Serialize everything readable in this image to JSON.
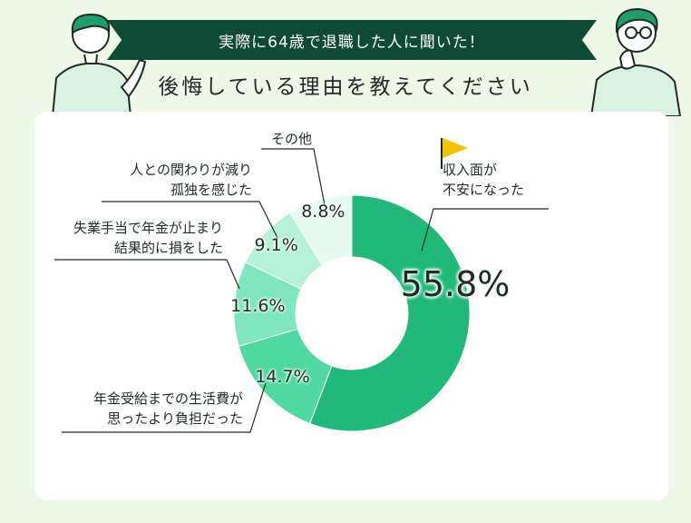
{
  "header": {
    "banner_text": "実際に64歳で退職した人に聞いた！",
    "subtitle": "後悔している理由を教えてください"
  },
  "colors": {
    "background": "#eef8e6",
    "banner": "#0f4a36",
    "accent_flag": "#f5c400"
  },
  "chart_data": {
    "type": "pie",
    "title": "後悔している理由を教えてください",
    "unit": "%",
    "slices": [
      {
        "label": "収入面が不安になった",
        "value": 55.8,
        "value_label": "55.8%",
        "label_lines": [
          "収入面が",
          "不安になった"
        ],
        "color": "#21b97a"
      },
      {
        "label": "年金受給までの生活費が思ったより負担だった",
        "value": 14.7,
        "value_label": "14.7%",
        "label_lines": [
          "年金受給までの生活費が",
          "思ったより負担だった"
        ],
        "color": "#4fd9a1"
      },
      {
        "label": "失業手当で年金が止まり結果的に損をした",
        "value": 11.6,
        "value_label": "11.6%",
        "label_lines": [
          "失業手当で年金が止まり",
          "結果的に損をした"
        ],
        "color": "#7fe6c0"
      },
      {
        "label": "人との関わりが減り孤独を感じた",
        "value": 9.1,
        "value_label": "9.1%",
        "label_lines": [
          "人との関わりが減り",
          "孤独を感じた"
        ],
        "color": "#b5f2d9"
      },
      {
        "label": "その他",
        "value": 8.8,
        "value_label": "8.8%",
        "label_lines": [
          "その他"
        ],
        "color": "#e6fbf1"
      }
    ]
  }
}
